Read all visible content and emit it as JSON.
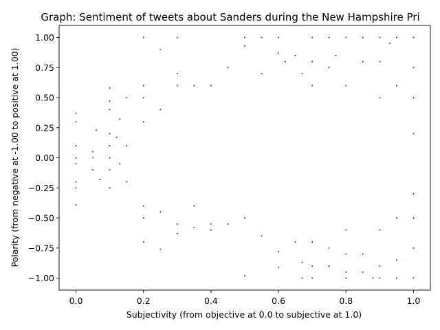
{
  "chart_data": {
    "type": "scatter",
    "title": "Graph: Sentiment of tweets about Sanders during the New Hampshire Pri",
    "xlabel": "Subjectivity (from objective at 0.0 to subjective at 1.0)",
    "ylabel": "Polarity (from negative at -1.00 to positive at 1.00)",
    "xlim": [
      -0.05,
      1.05
    ],
    "ylim": [
      -1.1,
      1.1
    ],
    "xticks": [
      0.0,
      0.2,
      0.4,
      0.6,
      0.8,
      1.0
    ],
    "xtick_labels": [
      "0.0",
      "0.2",
      "0.4",
      "0.6",
      "0.8",
      "1.0"
    ],
    "yticks": [
      -1.0,
      -0.75,
      -0.5,
      -0.25,
      0.0,
      0.25,
      0.5,
      0.75,
      1.0
    ],
    "ytick_labels": [
      "−1.00",
      "−0.75",
      "−0.50",
      "−0.25",
      "0.00",
      "0.25",
      "0.50",
      "0.75",
      "1.00"
    ],
    "marker_color": "#800080",
    "grid": false,
    "legend": "none",
    "series": [
      {
        "points": [
          [
            0.0,
            0.0
          ],
          [
            0.0,
            0.1
          ],
          [
            0.0,
            0.3
          ],
          [
            0.0,
            0.37
          ],
          [
            0.0,
            -0.05
          ],
          [
            0.0,
            -0.2
          ],
          [
            0.0,
            -0.25
          ],
          [
            0.0,
            -0.39
          ],
          [
            0.05,
            0.0
          ],
          [
            0.05,
            0.05
          ],
          [
            0.05,
            -0.1
          ],
          [
            0.06,
            0.23
          ],
          [
            0.07,
            -0.18
          ],
          [
            0.1,
            0.58
          ],
          [
            0.1,
            0.47
          ],
          [
            0.1,
            0.4
          ],
          [
            0.1,
            0.2
          ],
          [
            0.1,
            0.1
          ],
          [
            0.1,
            0.0
          ],
          [
            0.1,
            -0.1
          ],
          [
            0.1,
            -0.25
          ],
          [
            0.12,
            0.17
          ],
          [
            0.13,
            -0.05
          ],
          [
            0.13,
            0.32
          ],
          [
            0.15,
            0.5
          ],
          [
            0.15,
            0.1
          ],
          [
            0.15,
            -0.2
          ],
          [
            0.2,
            1.0
          ],
          [
            0.2,
            0.6
          ],
          [
            0.2,
            0.5
          ],
          [
            0.2,
            0.3
          ],
          [
            0.2,
            -0.5
          ],
          [
            0.2,
            -0.7
          ],
          [
            0.2,
            -0.4
          ],
          [
            0.25,
            0.9
          ],
          [
            0.25,
            -0.76
          ],
          [
            0.25,
            -0.45
          ],
          [
            0.25,
            0.4
          ],
          [
            0.3,
            1.0
          ],
          [
            0.3,
            0.7
          ],
          [
            0.3,
            0.6
          ],
          [
            0.3,
            -0.55
          ],
          [
            0.3,
            -0.63
          ],
          [
            0.35,
            0.6
          ],
          [
            0.35,
            -0.58
          ],
          [
            0.35,
            -0.4
          ],
          [
            0.4,
            0.6
          ],
          [
            0.4,
            -0.55
          ],
          [
            0.4,
            -0.6
          ],
          [
            0.45,
            0.75
          ],
          [
            0.45,
            -0.55
          ],
          [
            0.5,
            1.0
          ],
          [
            0.5,
            0.93
          ],
          [
            0.5,
            -0.5
          ],
          [
            0.5,
            -0.98
          ],
          [
            0.55,
            1.0
          ],
          [
            0.55,
            0.7
          ],
          [
            0.55,
            -0.65
          ],
          [
            0.6,
            1.0
          ],
          [
            0.6,
            0.87
          ],
          [
            0.6,
            -0.78
          ],
          [
            0.6,
            -0.91
          ],
          [
            0.62,
            0.8
          ],
          [
            0.65,
            0.85
          ],
          [
            0.65,
            -0.7
          ],
          [
            0.67,
            -1.0
          ],
          [
            0.67,
            0.7
          ],
          [
            0.67,
            -0.87
          ],
          [
            0.7,
            1.0
          ],
          [
            0.7,
            0.8
          ],
          [
            0.7,
            0.6
          ],
          [
            0.7,
            -0.9
          ],
          [
            0.7,
            -0.7
          ],
          [
            0.7,
            -1.0
          ],
          [
            0.75,
            1.0
          ],
          [
            0.75,
            0.75
          ],
          [
            0.75,
            -0.75
          ],
          [
            0.75,
            -0.9
          ],
          [
            0.77,
            0.85
          ],
          [
            0.8,
            1.0
          ],
          [
            0.8,
            0.6
          ],
          [
            0.8,
            -0.6
          ],
          [
            0.8,
            -0.8
          ],
          [
            0.8,
            -0.95
          ],
          [
            0.8,
            -1.0
          ],
          [
            0.85,
            1.0
          ],
          [
            0.85,
            0.8
          ],
          [
            0.85,
            -0.8
          ],
          [
            0.85,
            -0.95
          ],
          [
            0.88,
            -1.0
          ],
          [
            0.9,
            1.0
          ],
          [
            0.9,
            0.8
          ],
          [
            0.9,
            0.5
          ],
          [
            0.9,
            -0.6
          ],
          [
            0.9,
            -0.9
          ],
          [
            0.9,
            -1.0
          ],
          [
            0.93,
            0.95
          ],
          [
            0.95,
            1.0
          ],
          [
            0.95,
            0.6
          ],
          [
            0.95,
            -0.5
          ],
          [
            0.95,
            -0.85
          ],
          [
            0.95,
            -1.0
          ],
          [
            1.0,
            1.0
          ],
          [
            1.0,
            0.75
          ],
          [
            1.0,
            0.5
          ],
          [
            1.0,
            0.2
          ],
          [
            1.0,
            -0.3
          ],
          [
            1.0,
            -0.5
          ],
          [
            1.0,
            -0.75
          ],
          [
            1.0,
            -1.0
          ]
        ]
      }
    ]
  }
}
